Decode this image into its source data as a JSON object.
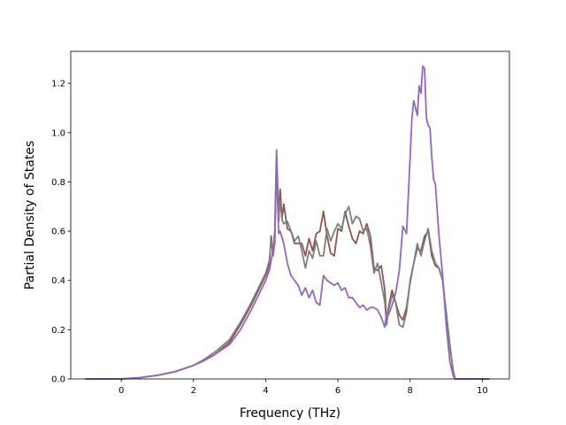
{
  "chart_data": {
    "type": "line",
    "title": "",
    "xlabel": "Frequency (THz)",
    "ylabel": "Partial Density of States",
    "xlim": [
      -1.4,
      10.75
    ],
    "ylim": [
      0,
      1.33
    ],
    "xticks": [
      0,
      2,
      4,
      6,
      8,
      10
    ],
    "yticks": [
      0.0,
      0.2,
      0.4,
      0.6,
      0.8,
      1.0,
      1.2
    ],
    "grid": false,
    "legend": "none",
    "series": [
      {
        "color": "#8c564b",
        "x": [
          -1.0,
          -0.5,
          0.0,
          0.5,
          1.0,
          1.5,
          2.0,
          2.3,
          2.6,
          3.0,
          3.3,
          3.6,
          3.8,
          4.0,
          4.1,
          4.15,
          4.2,
          4.25,
          4.3,
          4.33,
          4.36,
          4.4,
          4.45,
          4.5,
          4.6,
          4.7,
          4.8,
          5.0,
          5.1,
          5.2,
          5.3,
          5.4,
          5.5,
          5.6,
          5.7,
          5.8,
          5.9,
          6.0,
          6.1,
          6.2,
          6.3,
          6.4,
          6.5,
          6.6,
          6.7,
          6.8,
          6.9,
          7.0,
          7.1,
          7.2,
          7.3,
          7.35,
          7.4,
          7.5,
          7.6,
          7.7,
          7.8,
          7.9,
          8.0,
          8.1,
          8.2,
          8.3,
          8.4,
          8.5,
          8.6,
          8.7,
          8.8,
          8.9,
          9.0,
          9.1,
          9.2,
          9.25,
          9.3,
          9.5,
          10.0,
          10.2
        ],
        "y": [
          0.0,
          0.0,
          0.0,
          0.005,
          0.015,
          0.03,
          0.055,
          0.075,
          0.1,
          0.15,
          0.22,
          0.3,
          0.36,
          0.42,
          0.46,
          0.58,
          0.5,
          0.55,
          0.88,
          0.74,
          0.64,
          0.77,
          0.65,
          0.71,
          0.61,
          0.6,
          0.55,
          0.55,
          0.5,
          0.57,
          0.52,
          0.59,
          0.6,
          0.68,
          0.58,
          0.51,
          0.5,
          0.61,
          0.6,
          0.68,
          0.62,
          0.57,
          0.55,
          0.6,
          0.59,
          0.63,
          0.58,
          0.45,
          0.44,
          0.46,
          0.36,
          0.23,
          0.29,
          0.36,
          0.31,
          0.26,
          0.24,
          0.29,
          0.39,
          0.47,
          0.53,
          0.52,
          0.58,
          0.6,
          0.5,
          0.46,
          0.45,
          0.4,
          0.27,
          0.14,
          0.02,
          0.0,
          0.0,
          0.0,
          0.0,
          0.0
        ]
      },
      {
        "color": "#7f7f7f",
        "x": [
          -1.0,
          -0.5,
          0.0,
          0.5,
          1.0,
          1.5,
          2.0,
          2.3,
          2.6,
          3.0,
          3.3,
          3.6,
          3.8,
          4.0,
          4.1,
          4.15,
          4.2,
          4.25,
          4.3,
          4.33,
          4.36,
          4.4,
          4.45,
          4.5,
          4.6,
          4.7,
          4.8,
          4.9,
          5.0,
          5.1,
          5.2,
          5.3,
          5.4,
          5.5,
          5.6,
          5.7,
          5.8,
          5.9,
          6.0,
          6.1,
          6.2,
          6.3,
          6.4,
          6.5,
          6.6,
          6.7,
          6.8,
          6.9,
          7.0,
          7.1,
          7.2,
          7.3,
          7.35,
          7.4,
          7.5,
          7.6,
          7.7,
          7.8,
          7.9,
          8.0,
          8.1,
          8.2,
          8.3,
          8.4,
          8.5,
          8.6,
          8.7,
          8.8,
          8.9,
          9.0,
          9.1,
          9.2,
          9.25,
          9.3,
          9.5,
          10.0,
          10.2
        ],
        "y": [
          0.0,
          0.0,
          0.0,
          0.005,
          0.015,
          0.03,
          0.055,
          0.08,
          0.11,
          0.16,
          0.23,
          0.31,
          0.37,
          0.43,
          0.48,
          0.56,
          0.52,
          0.6,
          0.93,
          0.8,
          0.66,
          0.72,
          0.65,
          0.63,
          0.64,
          0.6,
          0.56,
          0.58,
          0.52,
          0.45,
          0.52,
          0.49,
          0.56,
          0.5,
          0.5,
          0.61,
          0.56,
          0.6,
          0.63,
          0.61,
          0.67,
          0.7,
          0.63,
          0.66,
          0.65,
          0.6,
          0.61,
          0.54,
          0.43,
          0.47,
          0.39,
          0.31,
          0.22,
          0.28,
          0.34,
          0.31,
          0.22,
          0.21,
          0.27,
          0.4,
          0.47,
          0.55,
          0.5,
          0.56,
          0.61,
          0.52,
          0.47,
          0.45,
          0.4,
          0.26,
          0.13,
          0.03,
          0.0,
          0.0,
          0.0,
          0.0,
          0.0
        ]
      },
      {
        "color": "#9467bd",
        "x": [
          -1.0,
          -0.5,
          0.0,
          0.5,
          1.0,
          1.5,
          2.0,
          2.3,
          2.6,
          3.0,
          3.3,
          3.6,
          3.8,
          4.0,
          4.1,
          4.2,
          4.25,
          4.3,
          4.33,
          4.36,
          4.4,
          4.5,
          4.6,
          4.7,
          4.8,
          4.9,
          5.0,
          5.1,
          5.2,
          5.3,
          5.4,
          5.5,
          5.6,
          5.7,
          5.8,
          5.9,
          6.0,
          6.1,
          6.2,
          6.3,
          6.4,
          6.5,
          6.6,
          6.7,
          6.8,
          6.9,
          7.0,
          7.1,
          7.2,
          7.3,
          7.35,
          7.4,
          7.5,
          7.6,
          7.7,
          7.8,
          7.9,
          8.0,
          8.05,
          8.1,
          8.2,
          8.25,
          8.3,
          8.35,
          8.4,
          8.45,
          8.5,
          8.55,
          8.6,
          8.65,
          8.7,
          8.8,
          8.9,
          9.0,
          9.1,
          9.2,
          9.25,
          9.3,
          9.5,
          10.0,
          10.2
        ],
        "y": [
          0.0,
          0.0,
          0.0,
          0.005,
          0.015,
          0.03,
          0.055,
          0.075,
          0.1,
          0.14,
          0.2,
          0.28,
          0.34,
          0.4,
          0.44,
          0.52,
          0.55,
          0.91,
          0.72,
          0.59,
          0.6,
          0.55,
          0.47,
          0.42,
          0.4,
          0.38,
          0.34,
          0.37,
          0.33,
          0.36,
          0.31,
          0.3,
          0.42,
          0.4,
          0.39,
          0.38,
          0.39,
          0.36,
          0.37,
          0.33,
          0.33,
          0.31,
          0.29,
          0.3,
          0.28,
          0.29,
          0.29,
          0.28,
          0.25,
          0.21,
          0.27,
          0.26,
          0.3,
          0.35,
          0.44,
          0.62,
          0.59,
          0.9,
          1.06,
          1.13,
          1.07,
          1.19,
          1.16,
          1.27,
          1.26,
          1.06,
          1.03,
          1.02,
          0.9,
          0.81,
          0.79,
          0.58,
          0.42,
          0.22,
          0.07,
          0.01,
          0.0,
          0.0,
          0.0,
          0.0,
          0.0
        ]
      }
    ]
  }
}
